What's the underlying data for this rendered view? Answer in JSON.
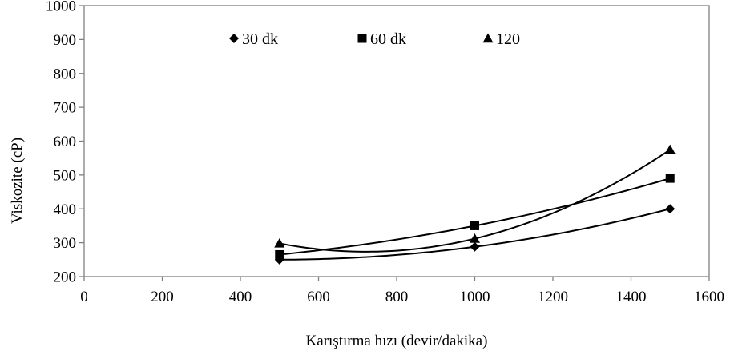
{
  "chart_data": {
    "type": "scatter",
    "xlabel": "Karıştırma hızı (devir/dakika)",
    "ylabel": "Viskozite (cP)",
    "xlim": [
      0,
      1600
    ],
    "ylim": [
      200,
      1000
    ],
    "xticks": [
      0,
      200,
      400,
      600,
      800,
      1000,
      1200,
      1400,
      1600
    ],
    "yticks": [
      200,
      300,
      400,
      500,
      600,
      700,
      800,
      900,
      1000
    ],
    "grid": false,
    "legend_position": "top-center",
    "trendline": "polynomial order 2",
    "series": [
      {
        "name": "30 dk",
        "marker": "diamond",
        "x": [
          500,
          1000,
          1500
        ],
        "y": [
          250,
          288,
          400
        ]
      },
      {
        "name": "60 dk",
        "marker": "square",
        "x": [
          500,
          1000,
          1500
        ],
        "y": [
          265,
          350,
          490
        ]
      },
      {
        "name": "120",
        "marker": "triangle",
        "x": [
          500,
          1000,
          1500
        ],
        "y": [
          298,
          312,
          575
        ]
      }
    ],
    "colors": {
      "marks": "#000000",
      "frame": "#808080",
      "background": "#ffffff"
    }
  }
}
